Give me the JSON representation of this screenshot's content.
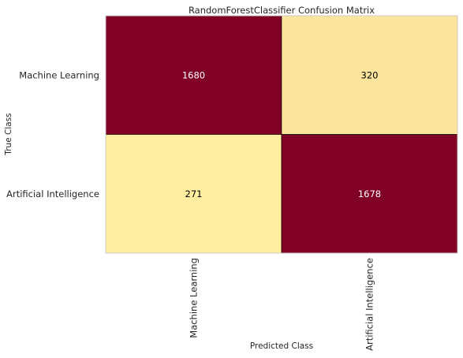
{
  "chart_data": {
    "type": "heatmap",
    "title": "RandomForestClassifier Confusion Matrix",
    "xlabel": "Predicted Class",
    "ylabel": "True Class",
    "row_labels": [
      "Machine Learning",
      "Artificial Intelligence"
    ],
    "col_labels": [
      "Machine Learning",
      "Artificial Intelligence"
    ],
    "values": [
      [
        1680,
        320
      ],
      [
        271,
        1678
      ]
    ],
    "colors": {
      "high": "#800026",
      "low": "#ffeda0",
      "text_on_high": "#ffffff",
      "text_on_low": "#000000",
      "frame": "#cccccc"
    },
    "grid": false,
    "legend": "none"
  }
}
